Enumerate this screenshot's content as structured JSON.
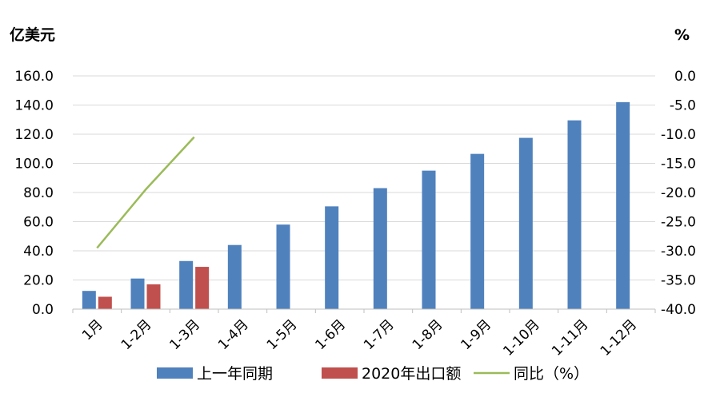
{
  "chart_data": {
    "type": "bar",
    "categories": [
      "1月",
      "1-2月",
      "1-3月",
      "1-4月",
      "1-5月",
      "1-6月",
      "1-7月",
      "1-8月",
      "1-9月",
      "1-10月",
      "1-11月",
      "1-12月"
    ],
    "series": [
      {
        "name": "上一年同期",
        "type": "bar",
        "axis": "left",
        "color": "#4f81bd",
        "values": [
          12.5,
          21.0,
          33.0,
          44.0,
          58.0,
          70.5,
          83.0,
          95.0,
          106.5,
          117.5,
          129.5,
          142.0
        ]
      },
      {
        "name": "2020年出口额",
        "type": "bar",
        "axis": "left",
        "color": "#c0504d",
        "values": [
          8.5,
          17.0,
          29.0,
          null,
          null,
          null,
          null,
          null,
          null,
          null,
          null,
          null
        ]
      },
      {
        "name": "同比（%）",
        "type": "line",
        "axis": "right",
        "color": "#9bbb59",
        "values": [
          -29.5,
          -19.5,
          -10.5,
          null,
          null,
          null,
          null,
          null,
          null,
          null,
          null,
          null
        ]
      }
    ],
    "yleft": {
      "label": "亿美元",
      "ylim": [
        0,
        160
      ],
      "ticks": [
        "0.0",
        "20.0",
        "40.0",
        "60.0",
        "80.0",
        "100.0",
        "120.0",
        "140.0",
        "160.0"
      ]
    },
    "yright": {
      "label": "%",
      "ylim": [
        -40,
        0
      ],
      "ticks": [
        "-40.0",
        "-35.0",
        "-30.0",
        "-25.0",
        "-20.0",
        "-15.0",
        "-10.0",
        "-5.0",
        "0.0"
      ]
    },
    "grid": true,
    "legend": "bottom"
  }
}
